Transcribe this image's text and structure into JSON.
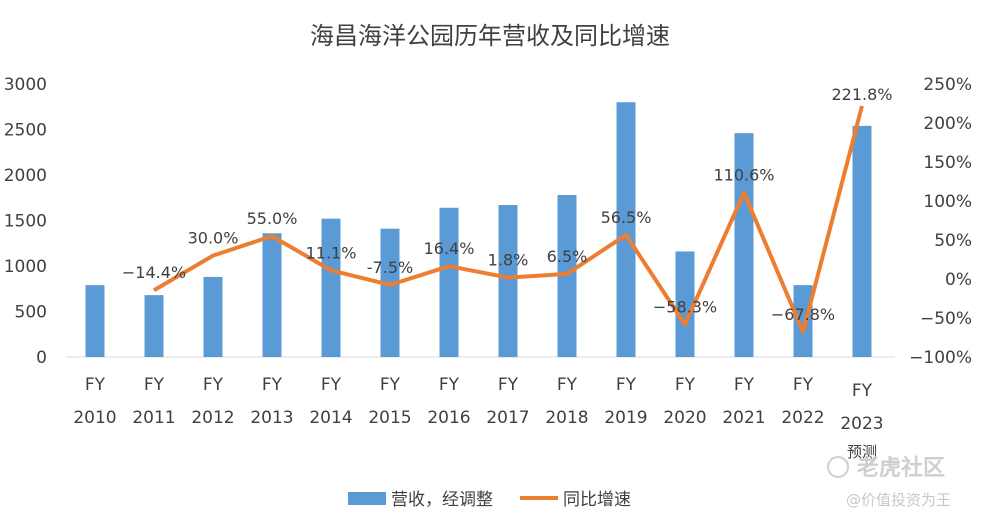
{
  "chart_data": {
    "type": "bar+line",
    "title": "海昌海洋公园历年营收及同比增速",
    "categories": [
      {
        "line1": "FY",
        "line2": "2010"
      },
      {
        "line1": "FY",
        "line2": "2011"
      },
      {
        "line1": "FY",
        "line2": "2012"
      },
      {
        "line1": "FY",
        "line2": "2013"
      },
      {
        "line1": "FY",
        "line2": "2014"
      },
      {
        "line1": "FY",
        "line2": "2015"
      },
      {
        "line1": "FY",
        "line2": "2016"
      },
      {
        "line1": "FY",
        "line2": "2017"
      },
      {
        "line1": "FY",
        "line2": "2018"
      },
      {
        "line1": "FY",
        "line2": "2019"
      },
      {
        "line1": "FY",
        "line2": "2020"
      },
      {
        "line1": "FY",
        "line2": "2021"
      },
      {
        "line1": "FY",
        "line2": "2022"
      },
      {
        "line1": "FY",
        "line2": "2023",
        "line3": "预测"
      }
    ],
    "series": [
      {
        "name": "营收，经调整",
        "type": "bar",
        "axis": "left",
        "color": "#5b9bd5",
        "values": [
          790,
          680,
          880,
          1360,
          1520,
          1410,
          1640,
          1670,
          1780,
          2800,
          1160,
          2460,
          790,
          2540
        ]
      },
      {
        "name": "同比增速",
        "type": "line",
        "axis": "right",
        "color": "#ed7d31",
        "values": [
          null,
          -14.4,
          30.0,
          55.0,
          11.1,
          -7.5,
          16.4,
          1.8,
          6.5,
          56.5,
          -58.3,
          110.6,
          -67.8,
          221.8
        ],
        "labels": [
          "",
          "−14.4%",
          "30.0%",
          "55.0%",
          "11.1%",
          "-7.5%",
          "16.4%",
          "1.8%",
          "6.5%",
          "56.5%",
          "−58.3%",
          "110.6%",
          "−67.8%",
          "221.8%"
        ]
      }
    ],
    "y_left": {
      "min": 0,
      "max": 3000,
      "ticks": [
        "0",
        "500",
        "1000",
        "1500",
        "2000",
        "2500",
        "3000"
      ]
    },
    "y_right": {
      "min": -100,
      "max": 250,
      "ticks": [
        "−100%",
        "−50%",
        "0%",
        "50%",
        "100%",
        "150%",
        "200%",
        "250%"
      ]
    },
    "legend": {
      "position": "bottom-center",
      "items": [
        "营收，经调整",
        "同比增速"
      ]
    }
  },
  "watermark": {
    "brand": "老虎社区",
    "author": "@价值投资为王"
  }
}
